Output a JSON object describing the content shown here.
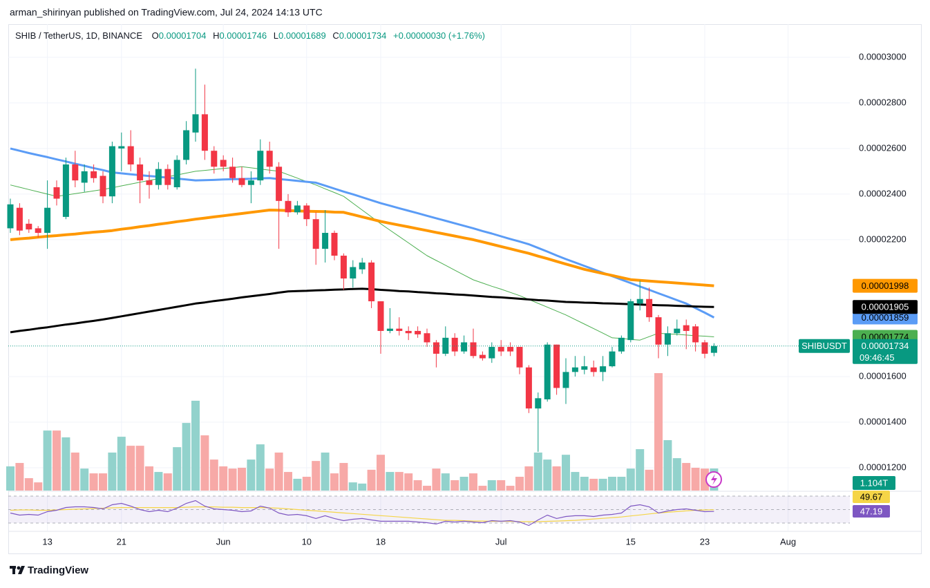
{
  "header": {
    "byline": "arman_shirinyan published on TradingView.com, Jul 24, 2024 14:13 UTC",
    "symbol": "SHIB / TetherUS, 1D, BINANCE",
    "open_label": "O",
    "high_label": "H",
    "low_label": "L",
    "close_label": "C",
    "change": "+0.00000030 (+1.76%)"
  },
  "footer": {
    "brand": "TradingView"
  },
  "chart_data": {
    "type": "candlestick",
    "ticker": "SHIBUSDT",
    "countdown": "09:46:45",
    "up_color": "#089981",
    "down_color": "#f23645",
    "up_volume_color": "#92d2cc",
    "down_volume_color": "#f7a9a7",
    "grid": true,
    "categories": [
      null,
      null,
      null,
      null,
      "13",
      null,
      null,
      null,
      null,
      null,
      null,
      null,
      "21",
      null,
      null,
      null,
      null,
      null,
      null,
      null,
      null,
      null,
      null,
      "Jun",
      null,
      null,
      null,
      null,
      null,
      null,
      null,
      null,
      "10",
      null,
      null,
      null,
      null,
      null,
      null,
      null,
      "18",
      null,
      null,
      null,
      null,
      null,
      null,
      null,
      null,
      null,
      null,
      null,
      null,
      "Jul",
      null,
      null,
      null,
      null,
      null,
      null,
      null,
      null,
      null,
      null,
      null,
      null,
      null,
      "15",
      null,
      null,
      null,
      null,
      null,
      null,
      null,
      "23",
      null,
      null,
      null,
      null,
      null,
      null,
      null,
      null,
      "Aug"
    ],
    "open": [
      2.25e-05,
      2.34e-05,
      2.27e-05,
      2.25e-05,
      2.23e-05,
      2.43e-05,
      2.3e-05,
      2.53e-05,
      2.45e-05,
      2.5e-05,
      2.48e-05,
      2.39e-05,
      2.6e-05,
      2.61e-05,
      2.53e-05,
      2.46e-05,
      2.44e-05,
      2.51e-05,
      2.43e-05,
      2.55e-05,
      2.67e-05,
      2.75e-05,
      2.59e-05,
      2.55e-05,
      2.52e-05,
      2.47e-05,
      2.44e-05,
      2.46e-05,
      2.59e-05,
      2.52e-05,
      2.37e-05,
      2.32e-05,
      2.35e-05,
      2.29e-05,
      2.16e-05,
      2.23e-05,
      2.13e-05,
      2.03e-05,
      2.07e-05,
      2.1e-05,
      1.93e-05,
      1.8e-05,
      1.81e-05,
      1.8e-05,
      1.8e-05,
      1.79e-05,
      1.75e-05,
      1.7e-05,
      1.77e-05,
      1.71e-05,
      1.75e-05,
      1.695e-05,
      1.68e-05,
      1.73e-05,
      1.73e-05,
      1.73e-05,
      1.64e-05,
      1.46e-05,
      1.5e-05,
      1.74e-05,
      1.55e-05,
      1.62e-05,
      1.63e-05,
      1.64e-05,
      1.62e-05,
      1.645e-05,
      1.71e-05,
      1.76e-05,
      1.92e-05,
      1.94e-05,
      1.86e-05,
      1.74e-05,
      1.79e-05,
      1.825e-05,
      1.82e-05,
      1.75e-05,
      1.704e-05,
      null,
      null,
      null,
      null,
      null,
      null,
      null,
      null
    ],
    "high": [
      2.38e-05,
      2.36e-05,
      2.29e-05,
      2.26e-05,
      2.46e-05,
      2.46e-05,
      2.56e-05,
      2.59e-05,
      2.53e-05,
      2.53e-05,
      2.5e-05,
      2.63e-05,
      2.67e-05,
      2.68e-05,
      2.56e-05,
      2.5e-05,
      2.54e-05,
      2.53e-05,
      2.57e-05,
      2.72e-05,
      2.95e-05,
      2.88e-05,
      2.61e-05,
      2.57e-05,
      2.56e-05,
      2.52e-05,
      2.5e-05,
      2.64e-05,
      2.63e-05,
      2.54e-05,
      2.4e-05,
      2.37e-05,
      2.36e-05,
      2.32e-05,
      2.33e-05,
      2.24e-05,
      2.14e-05,
      2.11e-05,
      2.12e-05,
      2.11e-05,
      1.93e-05,
      1.9e-05,
      1.86e-05,
      1.82e-05,
      1.82e-05,
      1.81e-05,
      1.76e-05,
      1.82e-05,
      1.79e-05,
      1.78e-05,
      1.81e-05,
      1.71e-05,
      1.75e-05,
      1.76e-05,
      1.75e-05,
      1.73e-05,
      1.65e-05,
      1.53e-05,
      1.75e-05,
      1.74e-05,
      1.68e-05,
      1.69e-05,
      1.69e-05,
      1.67e-05,
      1.69e-05,
      1.73e-05,
      1.78e-05,
      1.94e-05,
      2.02e-05,
      1.99e-05,
      1.87e-05,
      1.82e-05,
      1.85e-05,
      1.85e-05,
      1.83e-05,
      1.76e-05,
      1.746e-05,
      null,
      null,
      null,
      null,
      null,
      null,
      null,
      null
    ],
    "low": [
      2.23e-05,
      2.22e-05,
      2.23e-05,
      2.21e-05,
      2.16e-05,
      2.35e-05,
      2.29e-05,
      2.43e-05,
      2.41e-05,
      2.45e-05,
      2.36e-05,
      2.36e-05,
      2.5e-05,
      2.5e-05,
      2.36e-05,
      2.38e-05,
      2.42e-05,
      2.42e-05,
      2.42e-05,
      2.53e-05,
      2.63e-05,
      2.55e-05,
      2.49e-05,
      2.5e-05,
      2.45e-05,
      2.43e-05,
      2.36e-05,
      2.44e-05,
      2.49e-05,
      2.16e-05,
      2.3e-05,
      2.31e-05,
      2.26e-05,
      2.09e-05,
      2.1e-05,
      2.11e-05,
      1.98e-05,
      1.99e-05,
      2.05e-05,
      1.9e-05,
      1.7e-05,
      1.79e-05,
      1.78e-05,
      1.76e-05,
      1.77e-05,
      1.73e-05,
      1.64e-05,
      1.69e-05,
      1.69e-05,
      1.7e-05,
      1.68e-05,
      1.67e-05,
      1.66e-05,
      1.69e-05,
      1.69e-05,
      1.61e-05,
      1.44e-05,
      1.27e-05,
      1.49e-05,
      1.52e-05,
      1.48e-05,
      1.6e-05,
      1.61e-05,
      1.6e-05,
      1.58e-05,
      1.64e-05,
      1.7e-05,
      1.75e-05,
      1.89e-05,
      1.84e-05,
      1.68e-05,
      1.69e-05,
      1.78e-05,
      1.72e-05,
      1.71e-05,
      1.68e-05,
      1.689e-05,
      null,
      null,
      null,
      null,
      null,
      null,
      null,
      null
    ],
    "close": [
      2.355e-05,
      2.24e-05,
      2.245e-05,
      2.23e-05,
      2.34e-05,
      2.38e-05,
      2.53e-05,
      2.46e-05,
      2.5e-05,
      2.47e-05,
      2.39e-05,
      2.61e-05,
      2.61e-05,
      2.53e-05,
      2.46e-05,
      2.44e-05,
      2.51e-05,
      2.44e-05,
      2.55e-05,
      2.68e-05,
      2.75e-05,
      2.59e-05,
      2.52e-05,
      2.52e-05,
      2.47e-05,
      2.44e-05,
      2.46e-05,
      2.59e-05,
      2.52e-05,
      2.37e-05,
      2.32e-05,
      2.35e-05,
      2.29e-05,
      2.16e-05,
      2.23e-05,
      2.13e-05,
      2.03e-05,
      2.08e-05,
      2.1e-05,
      1.93e-05,
      1.8e-05,
      1.81e-05,
      1.8e-05,
      1.79e-05,
      1.785e-05,
      1.75e-05,
      1.7e-05,
      1.77e-05,
      1.71e-05,
      1.75e-05,
      1.69e-05,
      1.68e-05,
      1.73e-05,
      1.71e-05,
      1.71e-05,
      1.64e-05,
      1.46e-05,
      1.505e-05,
      1.74e-05,
      1.55e-05,
      1.62e-05,
      1.64e-05,
      1.645e-05,
      1.62e-05,
      1.645e-05,
      1.71e-05,
      1.77e-05,
      1.93e-05,
      1.94e-05,
      1.86e-05,
      1.74e-05,
      1.79e-05,
      1.81e-05,
      1.8e-05,
      1.75e-05,
      1.7e-05,
      1.734e-05,
      null,
      null,
      null,
      null,
      null,
      null,
      null,
      null
    ],
    "volume": {
      "values": [
        1.21,
        1.38,
        0.62,
        0.41,
        3.0,
        3.0,
        2.66,
        1.9,
        1.1,
        0.86,
        0.86,
        1.9,
        2.69,
        2.24,
        2.24,
        1.21,
        0.93,
        0.86,
        2.17,
        3.38,
        4.49,
        2.76,
        1.55,
        1.21,
        1.1,
        1.14,
        1.55,
        2.31,
        1.1,
        1.9,
        0.93,
        0.59,
        0.69,
        1.48,
        1.9,
        0.86,
        1.38,
        0.41,
        0.35,
        1.04,
        1.79,
        0.93,
        0.93,
        0.86,
        0.52,
        0.24,
        1.1,
        0.86,
        0.52,
        0.69,
        0.86,
        0.24,
        0.52,
        0.52,
        0.24,
        0.69,
        1.21,
        1.9,
        1.55,
        1.21,
        1.79,
        0.93,
        0.69,
        0.59,
        0.59,
        0.69,
        0.69,
        1.1,
        2.07,
        1.04,
        5.87,
        2.52,
        1.62,
        1.38,
        1.14,
        1.1,
        1.104,
        null,
        null,
        null,
        null,
        null,
        null,
        null,
        null
      ],
      "last_value_label": "1.104T"
    },
    "ylim": [
      1.1e-05,
      3.145e-05
    ],
    "yticks": [
      {
        "value": 3e-05,
        "label": "0.00003000"
      },
      {
        "value": 2.8e-05,
        "label": "0.00002800"
      },
      {
        "value": 2.6e-05,
        "label": "0.00002600"
      },
      {
        "value": 2.4e-05,
        "label": "0.00002400"
      },
      {
        "value": 2.2e-05,
        "label": "0.00002200"
      },
      {
        "value": 1.6e-05,
        "label": "0.00001600"
      },
      {
        "value": 1.4e-05,
        "label": "0.00001400"
      },
      {
        "value": 1.2e-05,
        "label": "0.00001200"
      }
    ],
    "moving_averages": [
      {
        "color": "#4caf50",
        "width": 1,
        "label_text_color": "#000000",
        "values": [
          2.44e-05,
          2.43e-05,
          2.42e-05,
          2.41e-05,
          2.4e-05,
          2.39e-05,
          2.396e-05,
          2.402e-05,
          2.408e-05,
          2.414e-05,
          2.42e-05,
          2.428e-05,
          2.436e-05,
          2.444e-05,
          2.452e-05,
          2.46e-05,
          2.468e-05,
          2.476e-05,
          2.484e-05,
          2.492e-05,
          2.5e-05,
          2.504e-05,
          2.508e-05,
          2.512e-05,
          2.516e-05,
          2.52e-05,
          2.515e-05,
          2.51e-05,
          2.505e-05,
          2.5e-05,
          2.485e-05,
          2.47e-05,
          2.455e-05,
          2.44e-05,
          2.423e-05,
          2.407e-05,
          2.39e-05,
          2.36e-05,
          2.33e-05,
          2.3e-05,
          2.27e-05,
          2.242e-05,
          2.214e-05,
          2.186e-05,
          2.158e-05,
          2.13e-05,
          2.109e-05,
          2.088e-05,
          2.066e-05,
          2.045e-05,
          2.024e-05,
          2.01e-05,
          1.996e-05,
          1.983e-05,
          1.969e-05,
          1.955e-05,
          1.938e-05,
          1.921e-05,
          1.904e-05,
          1.887e-05,
          1.87e-05,
          1.85e-05,
          1.83e-05,
          1.81e-05,
          1.79e-05,
          1.77e-05,
          1.767e-05,
          1.763e-05,
          1.76e-05,
          1.775e-05,
          1.79e-05,
          1.787e-05,
          1.785e-05,
          1.782e-05,
          1.779e-05,
          1.777e-05,
          1.774e-05,
          null,
          null,
          null,
          null,
          null,
          null,
          null,
          null
        ]
      },
      {
        "color": "#5b9cf6",
        "width": 3,
        "label_text_color": "#000000",
        "values": [
          2.6e-05,
          2.59e-05,
          2.58e-05,
          2.571e-05,
          2.562e-05,
          2.552e-05,
          2.543e-05,
          2.533e-05,
          2.524e-05,
          2.514e-05,
          2.505e-05,
          2.495e-05,
          2.491e-05,
          2.487e-05,
          2.483e-05,
          2.479e-05,
          2.476e-05,
          2.472e-05,
          2.468e-05,
          2.464e-05,
          2.46e-05,
          2.461e-05,
          2.462e-05,
          2.464e-05,
          2.465e-05,
          2.466e-05,
          2.467e-05,
          2.469e-05,
          2.47e-05,
          2.466e-05,
          2.462e-05,
          2.458e-05,
          2.454e-05,
          2.45e-05,
          2.437e-05,
          2.424e-05,
          2.411e-05,
          2.399e-05,
          2.386e-05,
          2.373e-05,
          2.36e-05,
          2.349e-05,
          2.338e-05,
          2.327e-05,
          2.316e-05,
          2.305e-05,
          2.294e-05,
          2.283e-05,
          2.272e-05,
          2.261e-05,
          2.25e-05,
          2.238e-05,
          2.227e-05,
          2.215e-05,
          2.203e-05,
          2.192e-05,
          2.18e-05,
          2.164e-05,
          2.148e-05,
          2.131e-05,
          2.115e-05,
          2.1e-05,
          2.085e-05,
          2.07e-05,
          2.055e-05,
          2.04e-05,
          2.025e-05,
          2.01e-05,
          1.995e-05,
          1.98e-05,
          1.965e-05,
          1.95e-05,
          1.935e-05,
          1.92e-05,
          1.9e-05,
          1.88e-05,
          1.859e-05,
          null,
          null,
          null,
          null,
          null,
          null,
          null,
          null
        ]
      },
      {
        "color": "#ff9800",
        "width": 4,
        "label_text_color": "#000000",
        "values": [
          2.2e-05,
          2.204e-05,
          2.207e-05,
          2.211e-05,
          2.215e-05,
          2.218e-05,
          2.222e-05,
          2.225e-05,
          2.229e-05,
          2.233e-05,
          2.236e-05,
          2.24e-05,
          2.246e-05,
          2.251e-05,
          2.257e-05,
          2.262e-05,
          2.268e-05,
          2.273e-05,
          2.279e-05,
          2.284e-05,
          2.29e-05,
          2.295e-05,
          2.3e-05,
          2.305e-05,
          2.31e-05,
          2.315e-05,
          2.32e-05,
          2.325e-05,
          2.33e-05,
          2.329e-05,
          2.328e-05,
          2.326e-05,
          2.325e-05,
          2.324e-05,
          2.323e-05,
          2.321e-05,
          2.32e-05,
          2.31e-05,
          2.3e-05,
          2.29e-05,
          2.28e-05,
          2.272e-05,
          2.264e-05,
          2.256e-05,
          2.248e-05,
          2.24e-05,
          2.232e-05,
          2.224e-05,
          2.216e-05,
          2.208e-05,
          2.2e-05,
          2.19e-05,
          2.18e-05,
          2.17e-05,
          2.16e-05,
          2.15e-05,
          2.14e-05,
          2.128e-05,
          2.117e-05,
          2.105e-05,
          2.093e-05,
          2.082e-05,
          2.07e-05,
          2.061e-05,
          2.052e-05,
          2.043e-05,
          2.034e-05,
          2.025e-05,
          2.022e-05,
          2.019e-05,
          2.016e-05,
          2.013e-05,
          2.01e-05,
          2.007e-05,
          2.004e-05,
          2.001e-05,
          1.998e-05,
          null,
          null,
          null,
          null,
          null,
          null,
          null,
          null
        ]
      },
      {
        "color": "#000000",
        "width": 3,
        "label_text_color": "#ffffff",
        "values": [
          1.794e-05,
          1.8e-05,
          1.805e-05,
          1.811e-05,
          1.816e-05,
          1.822e-05,
          1.828e-05,
          1.833e-05,
          1.839e-05,
          1.844e-05,
          1.85e-05,
          1.857e-05,
          1.864e-05,
          1.871e-05,
          1.878e-05,
          1.885e-05,
          1.892e-05,
          1.899e-05,
          1.906e-05,
          1.913e-05,
          1.92e-05,
          1.925e-05,
          1.931e-05,
          1.936e-05,
          1.941e-05,
          1.947e-05,
          1.952e-05,
          1.957e-05,
          1.962e-05,
          1.968e-05,
          1.973e-05,
          1.975e-05,
          1.976e-05,
          1.978e-05,
          1.979e-05,
          1.981e-05,
          1.982e-05,
          1.984e-05,
          1.985e-05,
          1.983e-05,
          1.98e-05,
          1.978e-05,
          1.975e-05,
          1.973e-05,
          1.97e-05,
          1.968e-05,
          1.965e-05,
          1.963e-05,
          1.96e-05,
          1.958e-05,
          1.955e-05,
          1.952e-05,
          1.949e-05,
          1.947e-05,
          1.944e-05,
          1.941e-05,
          1.938e-05,
          1.935e-05,
          1.933e-05,
          1.93e-05,
          1.927e-05,
          1.926e-05,
          1.924e-05,
          1.923e-05,
          1.921e-05,
          1.92e-05,
          1.919e-05,
          1.917e-05,
          1.916e-05,
          1.914e-05,
          1.913e-05,
          1.912e-05,
          1.91e-05,
          1.909e-05,
          1.907e-05,
          1.906e-05,
          1.905e-05,
          null,
          null,
          null,
          null,
          null,
          null,
          null,
          null
        ]
      }
    ],
    "rsi": {
      "color": "#7e57c2",
      "values": [
        44.9,
        41.8,
        42.8,
        41.8,
        46.9,
        49.0,
        53.1,
        54.1,
        54.1,
        53.1,
        51.0,
        57.2,
        59.2,
        55.1,
        50.0,
        46.9,
        49.0,
        46.9,
        52.1,
        59.2,
        63.3,
        55.1,
        51.0,
        50.0,
        49.0,
        46.9,
        47.9,
        55.1,
        52.1,
        44.9,
        41.8,
        42.8,
        40.8,
        36.7,
        40.8,
        36.7,
        33.6,
        35.6,
        36.7,
        34.6,
        32.6,
        32.6,
        32.6,
        32.6,
        31.5,
        30.5,
        28.5,
        32.6,
        31.5,
        32.6,
        31.5,
        30.5,
        33.6,
        32.6,
        33.6,
        31.5,
        26.4,
        34.6,
        41.8,
        36.7,
        39.7,
        40.8,
        40.8,
        39.7,
        41.8,
        42.8,
        44.9,
        55.1,
        57.2,
        54.1,
        44.9,
        47.9,
        50.0,
        51.0,
        49.0,
        46.9,
        47.19,
        null,
        null,
        null,
        null,
        null,
        null,
        null,
        null
      ]
    },
    "rsi_ma": {
      "color": "#f5d547",
      "values": [
        49,
        49.5,
        49.5,
        49,
        49,
        49.5,
        50,
        50.5,
        51,
        51.5,
        52,
        52.5,
        53,
        53,
        53,
        53,
        53,
        53,
        53,
        53.5,
        54,
        54,
        54,
        53.5,
        53.5,
        53,
        53,
        53,
        52.5,
        52,
        51,
        50,
        49,
        48,
        47,
        46,
        45,
        44,
        43,
        42,
        41,
        40,
        39,
        38,
        37,
        36,
        35,
        34,
        34,
        33.5,
        33,
        33,
        32.5,
        32.5,
        32.5,
        32,
        32,
        32,
        32.5,
        33,
        33.5,
        34,
        35,
        36,
        37,
        38,
        39,
        40.5,
        42,
        43.5,
        45,
        46,
        47,
        48,
        49,
        49.5,
        49.67,
        null,
        null,
        null,
        null,
        null,
        null,
        null,
        null
      ]
    },
    "rsi_ylim": [
      18.7,
      75.1
    ],
    "rsi_levels": [
      70,
      50,
      30
    ]
  }
}
